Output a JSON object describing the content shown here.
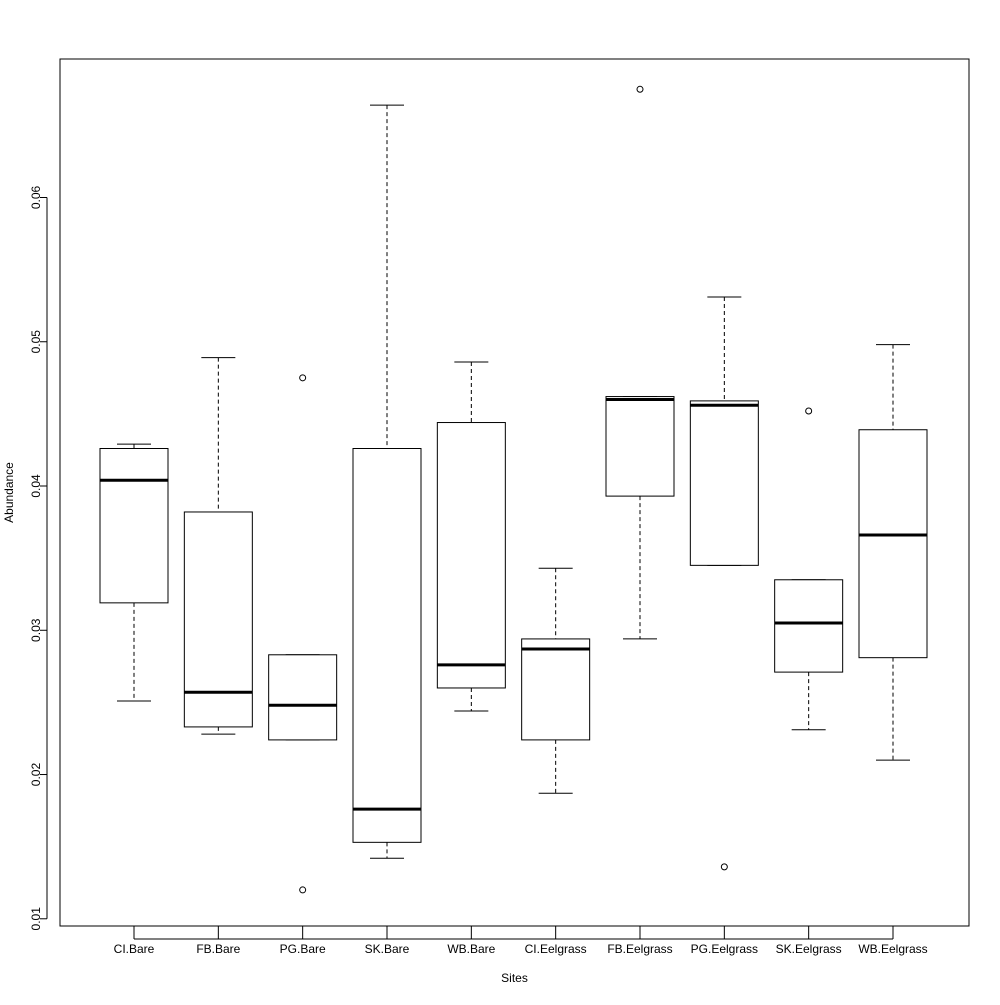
{
  "chart_data": {
    "type": "box",
    "title": "",
    "xlabel": "Sites",
    "ylabel": "Abundance",
    "ylim": [
      0.0095,
      0.0696
    ],
    "y_ticks": [
      0.01,
      0.02,
      0.03,
      0.04,
      0.05,
      0.06
    ],
    "y_tick_labels": [
      "0.01",
      "0.02",
      "0.03",
      "0.04",
      "0.05",
      "0.06"
    ],
    "grid": false,
    "legend": "none",
    "categories": [
      "CI.Bare",
      "FB.Bare",
      "PG.Bare",
      "SK.Bare",
      "WB.Bare",
      "CI.Eelgrass",
      "FB.Eelgrass",
      "PG.Eelgrass",
      "SK.Eelgrass",
      "WB.Eelgrass"
    ],
    "boxes": [
      {
        "min": 0.0251,
        "q1": 0.0319,
        "median": 0.0404,
        "q3": 0.0426,
        "max": 0.0429,
        "outliers": []
      },
      {
        "min": 0.0228,
        "q1": 0.0233,
        "median": 0.0257,
        "q3": 0.0382,
        "max": 0.0489,
        "outliers": []
      },
      {
        "min": 0.0224,
        "q1": 0.0224,
        "median": 0.0248,
        "q3": 0.0283,
        "max": 0.0283,
        "outliers": [
          0.0475,
          0.012
        ]
      },
      {
        "min": 0.0142,
        "q1": 0.0153,
        "median": 0.0176,
        "q3": 0.0426,
        "max": 0.0664,
        "outliers": []
      },
      {
        "min": 0.0244,
        "q1": 0.026,
        "median": 0.0276,
        "q3": 0.0444,
        "max": 0.0486,
        "outliers": []
      },
      {
        "min": 0.0187,
        "q1": 0.0224,
        "median": 0.0287,
        "q3": 0.0294,
        "max": 0.0343,
        "outliers": []
      },
      {
        "min": 0.0294,
        "q1": 0.0393,
        "median": 0.046,
        "q3": 0.0462,
        "max": 0.0462,
        "outliers": [
          0.0675
        ]
      },
      {
        "min": 0.0345,
        "q1": 0.0345,
        "median": 0.0456,
        "q3": 0.0459,
        "max": 0.0531,
        "outliers": [
          0.0136
        ]
      },
      {
        "min": 0.0231,
        "q1": 0.0271,
        "median": 0.0305,
        "q3": 0.0335,
        "max": 0.0335,
        "outliers": [
          0.0452
        ]
      },
      {
        "min": 0.021,
        "q1": 0.0281,
        "median": 0.0366,
        "q3": 0.0439,
        "max": 0.0498,
        "outliers": []
      }
    ]
  }
}
